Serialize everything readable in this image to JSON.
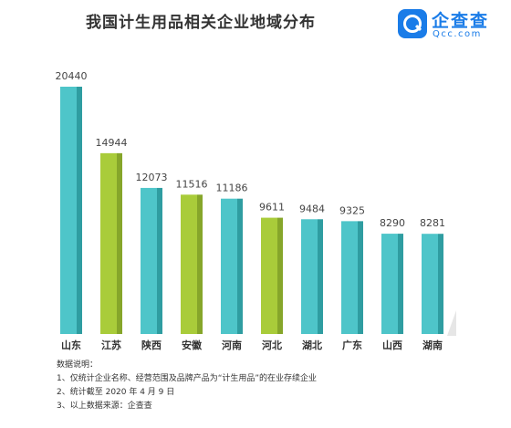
{
  "header": {
    "title": "我国计生用品相关企业地域分布"
  },
  "logo": {
    "name": "企查查",
    "domain": "Qcc.com",
    "color": "#1a7ce8"
  },
  "chart_data": {
    "type": "bar",
    "title": "我国计生用品相关企业地域分布",
    "categories": [
      "山东",
      "江苏",
      "陕西",
      "安徽",
      "河南",
      "河北",
      "湖北",
      "广东",
      "山西",
      "湖南"
    ],
    "values": [
      20440,
      14944,
      12073,
      11516,
      11186,
      9611,
      9484,
      9325,
      8290,
      8281
    ],
    "highlight": [
      false,
      true,
      false,
      true,
      false,
      true,
      false,
      false,
      false,
      false
    ],
    "colors": {
      "default_front": "#4ec5c9",
      "default_side": "#2f9da1",
      "highlight_front": "#a9cc3a",
      "highlight_side": "#86a62a"
    },
    "grid": false,
    "legend": "none"
  },
  "notes": {
    "heading": "数据说明：",
    "lines": [
      "1、仅统计企业名称、经营范围及品牌产品为“计生用品”的在业存续企业",
      "2、统计截至 2020 年 4 月 9 日",
      "3、以上数据来源：企查查"
    ]
  }
}
